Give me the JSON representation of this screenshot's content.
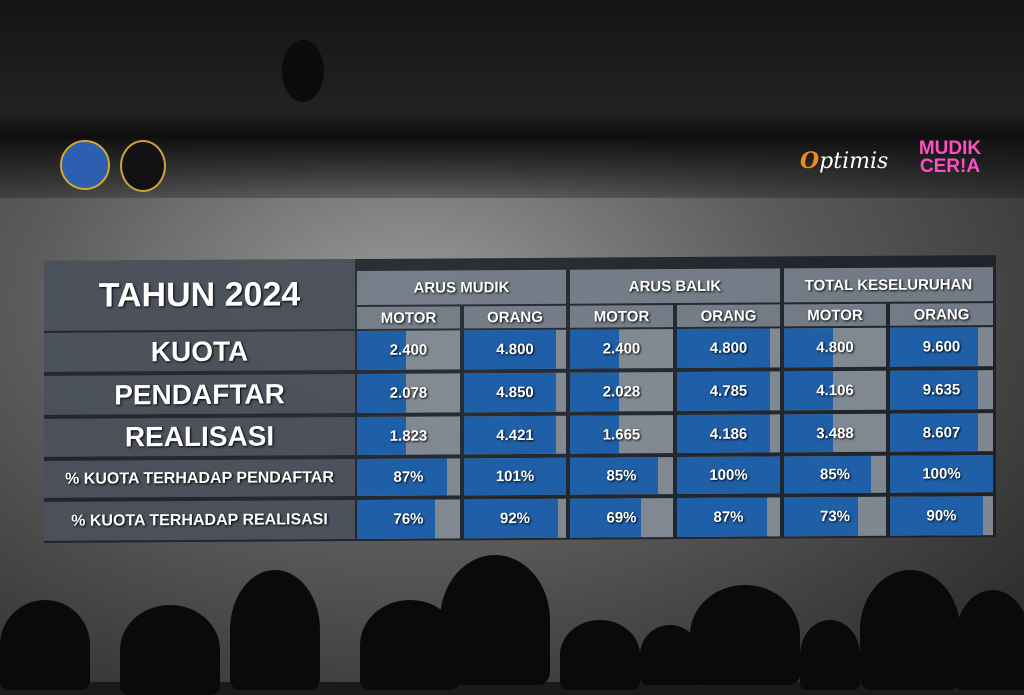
{
  "header_logos": {
    "logo_left_1": "Kementerian Perhubungan",
    "logo_right_1": "Optimis",
    "logo_right_2": "MUDIK CERIA"
  },
  "colors": {
    "bar": "#1f5fa8",
    "cell_bg": "#a0aab4",
    "mudik_ceria": "#ff4fc3",
    "optimis_orange": "#f08a1c"
  },
  "chart_data": {
    "type": "table",
    "title": "TAHUN 2024",
    "column_groups": [
      "ARUS MUDIK",
      "ARUS BALIK",
      "TOTAL KESELURUHAN"
    ],
    "columns": [
      "MOTOR",
      "ORANG",
      "MOTOR",
      "ORANG",
      "MOTOR",
      "ORANG"
    ],
    "rows": [
      {
        "label": "KUOTA",
        "values": [
          "2.400",
          "4.800",
          "2.400",
          "4.800",
          "4.800",
          "9.600"
        ],
        "fill_percent": [
          48,
          90,
          48,
          90,
          48,
          85
        ]
      },
      {
        "label": "PENDAFTAR",
        "values": [
          "2.078",
          "4.850",
          "2.028",
          "4.785",
          "4.106",
          "9.635"
        ],
        "fill_percent": [
          48,
          90,
          48,
          90,
          48,
          85
        ]
      },
      {
        "label": "REALISASI",
        "values": [
          "1.823",
          "4.421",
          "1.665",
          "4.186",
          "3.488",
          "8.607"
        ],
        "fill_percent": [
          48,
          90,
          48,
          90,
          48,
          85
        ]
      },
      {
        "label": "% KUOTA TERHADAP PENDAFTAR",
        "values": [
          "87%",
          "101%",
          "85%",
          "100%",
          "85%",
          "100%"
        ],
        "fill_percent": [
          87,
          100,
          85,
          100,
          85,
          100
        ]
      },
      {
        "label": "% KUOTA TERHADAP REALISASI",
        "values": [
          "76%",
          "92%",
          "69%",
          "87%",
          "73%",
          "90%"
        ],
        "fill_percent": [
          76,
          92,
          69,
          87,
          73,
          90
        ]
      }
    ]
  }
}
